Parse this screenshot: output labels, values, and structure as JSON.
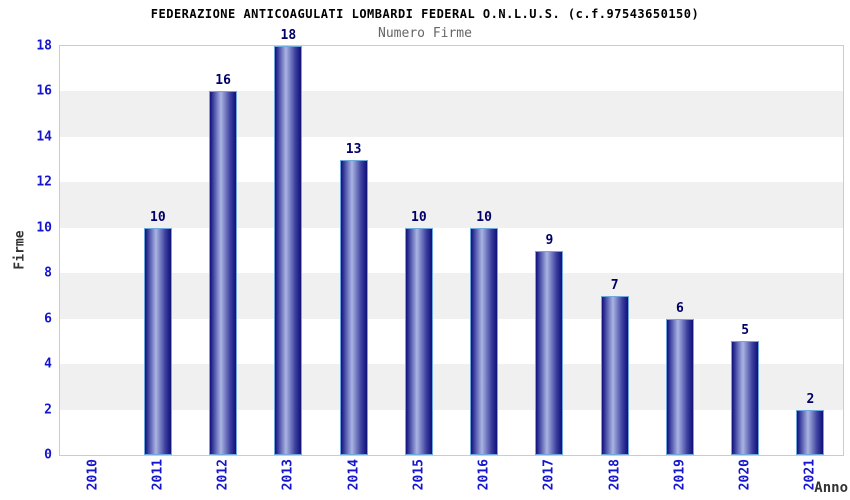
{
  "chart_data": {
    "type": "bar",
    "title": "FEDERAZIONE ANTICOAGULATI LOMBARDI FEDERAL O.N.L.U.S. (c.f.97543650150)",
    "subtitle": "Numero Firme",
    "xlabel": "Anno",
    "ylabel": "Firme",
    "categories": [
      "2010",
      "2011",
      "2012",
      "2013",
      "2014",
      "2015",
      "2016",
      "2017",
      "2018",
      "2019",
      "2020",
      "2021"
    ],
    "values": [
      0,
      10,
      16,
      18,
      13,
      10,
      10,
      9,
      7,
      6,
      5,
      2
    ],
    "ylim": [
      0,
      18
    ],
    "ytick_step": 2,
    "grid": "alternating horizontal bands",
    "legend": "none",
    "bar_value_labels": true,
    "colors": {
      "title": "#000000",
      "subtitle": "#666666",
      "tick_label": "#1515cc",
      "value_label": "#000066",
      "axis_label": "#333333",
      "band_light": "#ffffff",
      "band_dark": "#f0f0f0",
      "plot_border": "#cccccc",
      "bar_edge": "#10107a",
      "bar_mid": "#3c3f9e",
      "bar_center": "#aab4e2",
      "bar_border": "#6fa8dc",
      "background": "#ffffff"
    }
  }
}
